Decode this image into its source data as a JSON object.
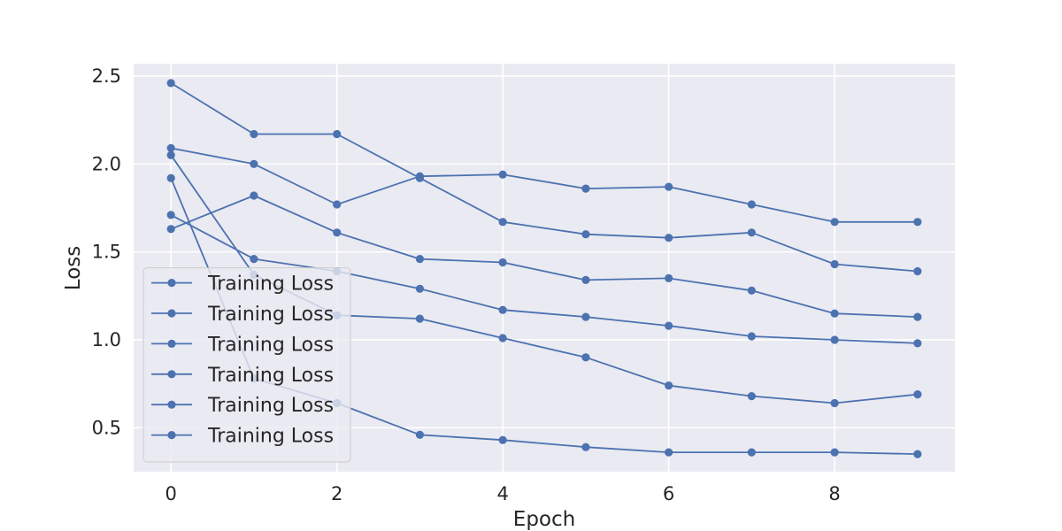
{
  "chart_data": {
    "type": "line",
    "xlabel": "Epoch",
    "ylabel": "Loss",
    "xlim": [
      -0.45,
      9.45
    ],
    "ylim": [
      0.25,
      2.57
    ],
    "x_ticks": [
      0,
      2,
      4,
      6,
      8
    ],
    "y_ticks": [
      0.5,
      1.0,
      1.5,
      2.0,
      2.5
    ],
    "x_tick_labels": [
      "0",
      "2",
      "4",
      "6",
      "8"
    ],
    "y_tick_labels": [
      "0.5",
      "1.0",
      "1.5",
      "2.0",
      "2.5"
    ],
    "grid": true,
    "legend_position": "lower-left",
    "color": "#4c72b0",
    "x": [
      0,
      1,
      2,
      3,
      4,
      5,
      6,
      7,
      8,
      9
    ],
    "series": [
      {
        "name": "Training Loss",
        "values": [
          2.46,
          2.17,
          2.17,
          1.92,
          1.67,
          1.6,
          1.58,
          1.61,
          1.43,
          1.39
        ]
      },
      {
        "name": "Training Loss",
        "values": [
          1.63,
          1.82,
          1.61,
          1.46,
          1.44,
          1.34,
          1.35,
          1.28,
          1.15,
          1.13
        ]
      },
      {
        "name": "Training Loss",
        "values": [
          2.09,
          2.0,
          1.77,
          1.93,
          1.94,
          1.86,
          1.87,
          1.77,
          1.67,
          1.67
        ]
      },
      {
        "name": "Training Loss",
        "values": [
          1.71,
          1.46,
          1.39,
          1.29,
          1.17,
          1.13,
          1.08,
          1.02,
          1.0,
          0.98
        ]
      },
      {
        "name": "Training Loss",
        "values": [
          2.05,
          1.37,
          1.14,
          1.12,
          1.01,
          0.9,
          0.74,
          0.68,
          0.64,
          0.69
        ]
      },
      {
        "name": "Training Loss",
        "values": [
          1.92,
          0.78,
          0.64,
          0.46,
          0.43,
          0.39,
          0.36,
          0.36,
          0.36,
          0.35
        ]
      }
    ]
  }
}
